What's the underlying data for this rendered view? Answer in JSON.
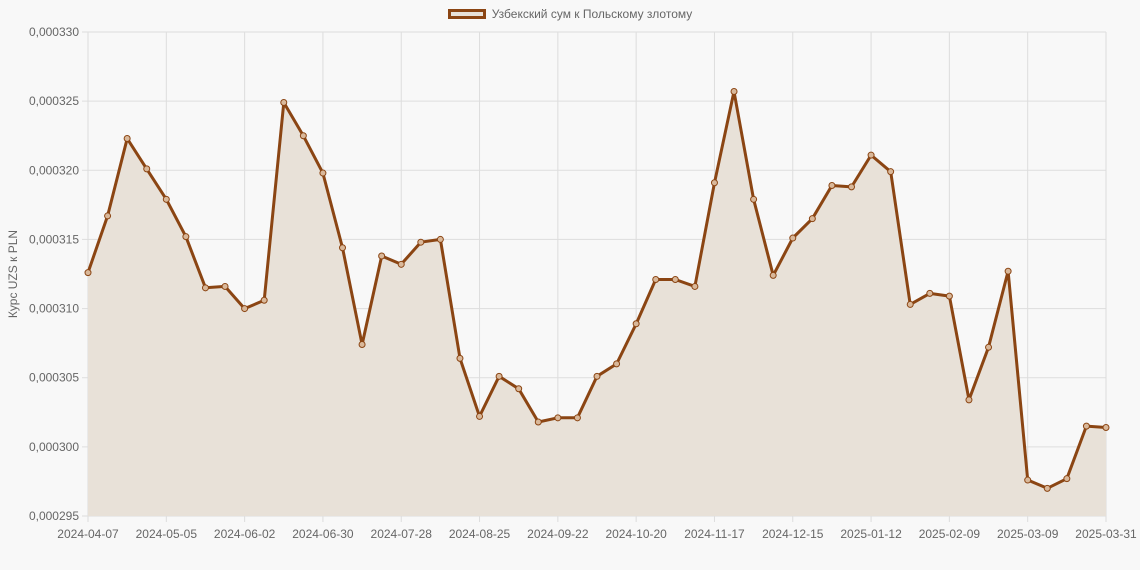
{
  "legend": {
    "label": "Узбекский сум к Польскому злотому",
    "swatch_border": "#8b4513",
    "swatch_fill": "#e8e1d8"
  },
  "colors": {
    "line": "#8b4513",
    "fill": "#e8e1d8",
    "grid": "#dddddd",
    "background": "#f8f8f8",
    "tick_text": "#666666"
  },
  "chart_data": {
    "type": "area",
    "title": "",
    "legend": [
      "Узбекский сум к Польскому злотому"
    ],
    "legend_position": "top",
    "xlabel": "",
    "ylabel": "Курс UZS к PLN",
    "ylim": [
      0.000295,
      0.00033
    ],
    "grid": true,
    "y_ticks": [
      "0,000295",
      "0,000300",
      "0,000305",
      "0,000310",
      "0,000315",
      "0,000320",
      "0,000325",
      "0,000330"
    ],
    "x_ticks": [
      "2024-04-07",
      "2024-05-05",
      "2024-06-02",
      "2024-06-30",
      "2024-07-28",
      "2024-08-25",
      "2024-09-22",
      "2024-10-20",
      "2024-11-17",
      "2024-12-15",
      "2025-01-12",
      "2025-02-09",
      "2025-03-09",
      "2025-03-31"
    ],
    "series": [
      {
        "name": "Узбекский сум к Польскому злотому",
        "values": [
          0.0003126,
          0.0003167,
          0.0003223,
          0.0003201,
          0.0003179,
          0.0003152,
          0.0003115,
          0.0003116,
          0.00031,
          0.0003106,
          0.0003249,
          0.0003225,
          0.0003198,
          0.0003144,
          0.0003074,
          0.0003138,
          0.0003132,
          0.0003148,
          0.000315,
          0.0003064,
          0.0003022,
          0.0003051,
          0.0003042,
          0.0003018,
          0.0003021,
          0.0003021,
          0.0003051,
          0.000306,
          0.0003089,
          0.0003121,
          0.0003121,
          0.0003116,
          0.0003191,
          0.0003257,
          0.0003179,
          0.0003124,
          0.0003151,
          0.0003165,
          0.0003189,
          0.0003188,
          0.0003211,
          0.0003199,
          0.0003103,
          0.0003111,
          0.0003109,
          0.0003034,
          0.0003072,
          0.0003127,
          0.0002976,
          0.000297,
          0.0002977,
          0.0003015,
          0.0003014
        ]
      }
    ]
  }
}
